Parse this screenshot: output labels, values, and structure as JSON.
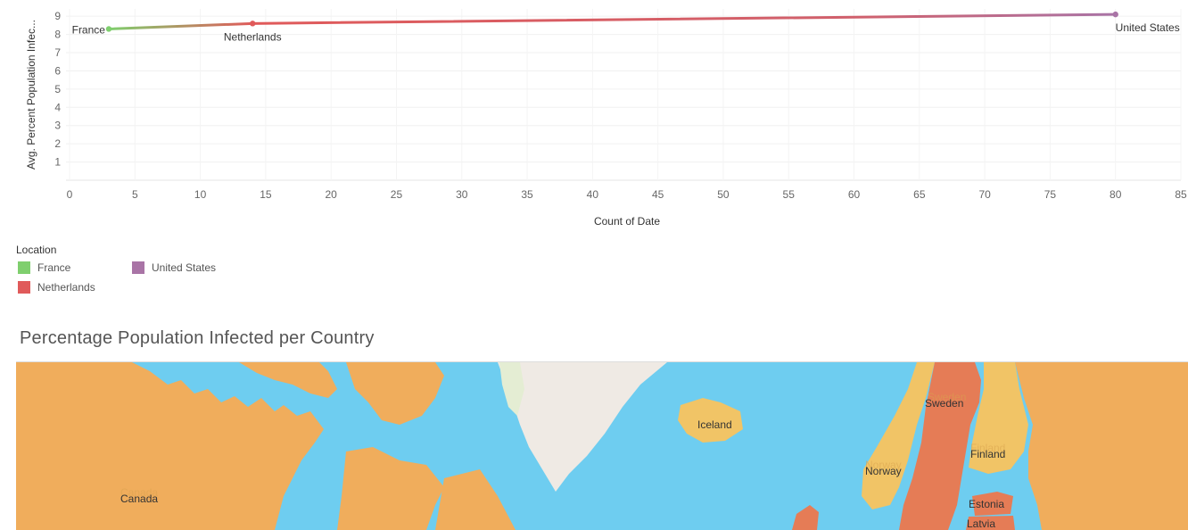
{
  "chart_data": {
    "type": "line",
    "xlabel": "Count of Date",
    "ylabel": "Avg. Percent Population Infec...",
    "xlim": [
      0,
      85
    ],
    "ylim": [
      0,
      9.4
    ],
    "xticks": [
      "0",
      "5",
      "10",
      "15",
      "20",
      "25",
      "30",
      "35",
      "40",
      "45",
      "50",
      "55",
      "60",
      "65",
      "70",
      "75",
      "80",
      "85"
    ],
    "yticks": [
      "1",
      "2",
      "3",
      "4",
      "5",
      "6",
      "7",
      "8",
      "9"
    ],
    "points": [
      {
        "name": "France",
        "x": 3,
        "y": 8.3,
        "color": "#7fcf6e"
      },
      {
        "name": "Netherlands",
        "x": 14,
        "y": 8.6,
        "color": "#e05a5a"
      },
      {
        "name": "United States",
        "x": 80,
        "y": 9.1,
        "color": "#a974a6"
      }
    ],
    "grid": true
  },
  "legend": {
    "title": "Location",
    "items": [
      {
        "label": "France",
        "color": "#7fcf6e"
      },
      {
        "label": "United States",
        "color": "#a974a6"
      },
      {
        "label": "Netherlands",
        "color": "#e05a5a"
      }
    ]
  },
  "map": {
    "title": "Percentage Population Infected per Country",
    "labels": {
      "canada": "Canada",
      "iceland": "Iceland",
      "sweden": "Sweden",
      "norway": "Norway",
      "finland": "Finland",
      "estonia": "Estonia",
      "latvia": "Latvia"
    },
    "colors": {
      "ocean": "#6ecdf0",
      "land_orange": "#f0ad5c",
      "land_light": "#f1c466",
      "land_red": "#e57c56",
      "greenland": "#efeae4"
    }
  }
}
